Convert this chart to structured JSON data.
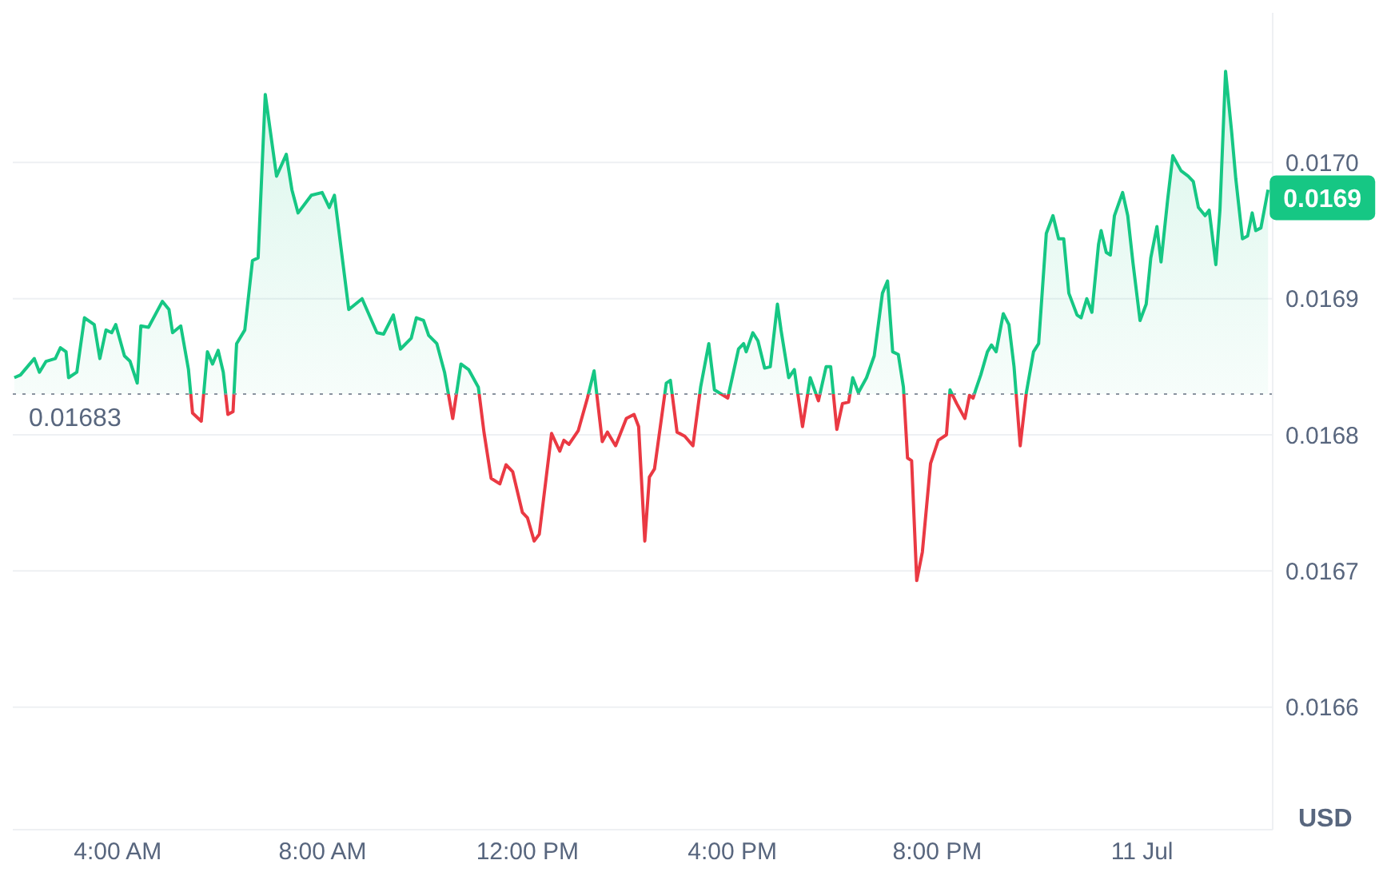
{
  "chart_data": {
    "type": "area",
    "ylabel": "USD",
    "x": [
      1.98,
      2.1,
      2.37,
      2.47,
      2.6,
      2.78,
      2.88,
      2.99,
      3.04,
      3.2,
      3.35,
      3.54,
      3.65,
      3.77,
      3.88,
      3.96,
      4.13,
      4.24,
      4.38,
      4.45,
      4.6,
      4.87,
      5.0,
      5.07,
      5.23,
      5.38,
      5.46,
      5.63,
      5.75,
      5.85,
      5.96,
      6.06,
      6.15,
      6.25,
      6.32,
      6.48,
      6.63,
      6.74,
      6.88,
      7.1,
      7.29,
      7.4,
      7.52,
      7.78,
      7.99,
      8.13,
      8.23,
      8.51,
      8.77,
      9.06,
      9.19,
      9.38,
      9.52,
      9.73,
      9.83,
      9.97,
      10.07,
      10.23,
      10.38,
      10.54,
      10.7,
      10.85,
      11.04,
      11.15,
      11.29,
      11.46,
      11.58,
      11.71,
      11.9,
      12.0,
      12.13,
      12.23,
      12.47,
      12.63,
      12.71,
      12.81,
      12.99,
      13.17,
      13.3,
      13.46,
      13.56,
      13.72,
      13.93,
      14.08,
      14.17,
      14.29,
      14.38,
      14.48,
      14.71,
      14.79,
      14.92,
      15.07,
      15.23,
      15.38,
      15.54,
      15.65,
      15.91,
      16.12,
      16.22,
      16.27,
      16.4,
      16.5,
      16.63,
      16.74,
      16.88,
      16.95,
      17.1,
      17.21,
      17.37,
      17.52,
      17.68,
      17.83,
      17.92,
      18.04,
      18.15,
      18.27,
      18.35,
      18.46,
      18.62,
      18.77,
      18.93,
      19.03,
      19.13,
      19.24,
      19.34,
      19.42,
      19.5,
      19.6,
      19.71,
      19.87,
      20.02,
      20.18,
      20.25,
      20.38,
      20.54,
      20.63,
      20.7,
      20.75,
      20.85,
      20.98,
      21.06,
      21.15,
      21.29,
      21.4,
      21.5,
      21.62,
      21.74,
      21.88,
      21.98,
      22.13,
      22.26,
      22.37,
      22.47,
      22.57,
      22.73,
      22.81,
      22.92,
      23.02,
      23.15,
      23.2,
      23.3,
      23.38,
      23.46,
      23.62,
      23.72,
      23.82,
      23.96,
      24.08,
      24.17,
      24.29,
      24.37,
      24.5,
      24.6,
      24.76,
      24.9,
      25.0,
      25.1,
      25.23,
      25.31,
      25.44,
      25.52,
      25.63,
      25.75,
      25.83,
      25.96,
      26.06,
      26.15,
      26.22,
      26.32,
      26.46
    ],
    "series": [
      {
        "color": "#16c784",
        "values": [
          0.016842,
          0.016844,
          0.016856,
          0.016846,
          0.016854,
          0.016856,
          0.016864,
          0.016861,
          0.016842,
          0.016846,
          0.016886,
          0.016881,
          0.016856,
          0.016877,
          0.016875,
          0.016881,
          0.016858,
          0.016854,
          0.016838,
          0.01688,
          0.016879,
          0.016898,
          0.016892,
          0.016875,
          0.01688,
          0.016848,
          0.016816,
          0.01681,
          0.016861,
          0.016852,
          0.016862,
          0.016846,
          0.016815,
          0.016817,
          0.016867,
          0.016877,
          0.016928,
          0.01693,
          0.01705,
          0.01699,
          0.017006,
          0.01698,
          0.016963,
          0.016976,
          0.016978,
          0.016967,
          0.016976,
          0.016892,
          0.0169,
          0.016875,
          0.016874,
          0.016888,
          0.016863,
          0.016871,
          0.016886,
          0.016884,
          0.016873,
          0.016867,
          0.016846,
          0.016812,
          0.016852,
          0.016848,
          0.016835,
          0.016802,
          0.016768,
          0.016764,
          0.016778,
          0.016773,
          0.016743,
          0.016739,
          0.016722,
          0.016727,
          0.016801,
          0.016788,
          0.016796,
          0.016793,
          0.016803,
          0.016827,
          0.016847,
          0.016795,
          0.016802,
          0.016792,
          0.016812,
          0.016815,
          0.016806,
          0.016722,
          0.016769,
          0.016775,
          0.016838,
          0.01684,
          0.016802,
          0.016799,
          0.016792,
          0.016835,
          0.016867,
          0.016833,
          0.016827,
          0.016863,
          0.016867,
          0.016861,
          0.016875,
          0.016869,
          0.016849,
          0.01685,
          0.016896,
          0.016877,
          0.016842,
          0.016848,
          0.016806,
          0.016842,
          0.016825,
          0.01685,
          0.01685,
          0.016804,
          0.016823,
          0.016824,
          0.016842,
          0.016831,
          0.016842,
          0.016858,
          0.016904,
          0.016913,
          0.016861,
          0.016859,
          0.016835,
          0.016783,
          0.016781,
          0.016693,
          0.016714,
          0.016779,
          0.016796,
          0.0168,
          0.016833,
          0.016823,
          0.016812,
          0.016829,
          0.016827,
          0.016833,
          0.016844,
          0.016861,
          0.016866,
          0.016861,
          0.016889,
          0.016881,
          0.01685,
          0.016792,
          0.016831,
          0.016861,
          0.016867,
          0.016948,
          0.016961,
          0.016944,
          0.016944,
          0.016904,
          0.016888,
          0.016886,
          0.0169,
          0.01689,
          0.01694,
          0.01695,
          0.016934,
          0.016932,
          0.016961,
          0.016978,
          0.016961,
          0.016927,
          0.016884,
          0.016896,
          0.01693,
          0.016953,
          0.016927,
          0.016973,
          0.017005,
          0.016994,
          0.01699,
          0.016986,
          0.016967,
          0.016961,
          0.016965,
          0.016925,
          0.016965,
          0.017067,
          0.017022,
          0.016988,
          0.016944,
          0.016946,
          0.016963,
          0.01695,
          0.016952,
          0.01698
        ]
      }
    ],
    "xlim": [
      1.95,
      26.55
    ],
    "xticks": [
      {
        "value": 4,
        "label": "4:00 AM"
      },
      {
        "value": 8,
        "label": "8:00 AM"
      },
      {
        "value": 12,
        "label": "12:00 PM"
      },
      {
        "value": 16,
        "label": "4:00 PM"
      },
      {
        "value": 20,
        "label": "8:00 PM"
      },
      {
        "value": 24,
        "label": "11 Jul"
      }
    ],
    "ylim": [
      0.01651,
      0.01711
    ],
    "yticks": [
      0.0166,
      0.0167,
      0.0168,
      0.0169,
      {
        "value": 0.017,
        "label": "0.0170"
      }
    ],
    "ref_lines": [
      {
        "axis": "y",
        "value": 0.01683,
        "label": "0.01683",
        "color": "#8a939f",
        "line_style": "dotted"
      }
    ],
    "annotations": [
      {
        "text": "0.0169",
        "x": 26.46,
        "y": 0.01698
      }
    ],
    "grid": "y",
    "legend": false,
    "marker": "none",
    "line_style": "solid"
  }
}
